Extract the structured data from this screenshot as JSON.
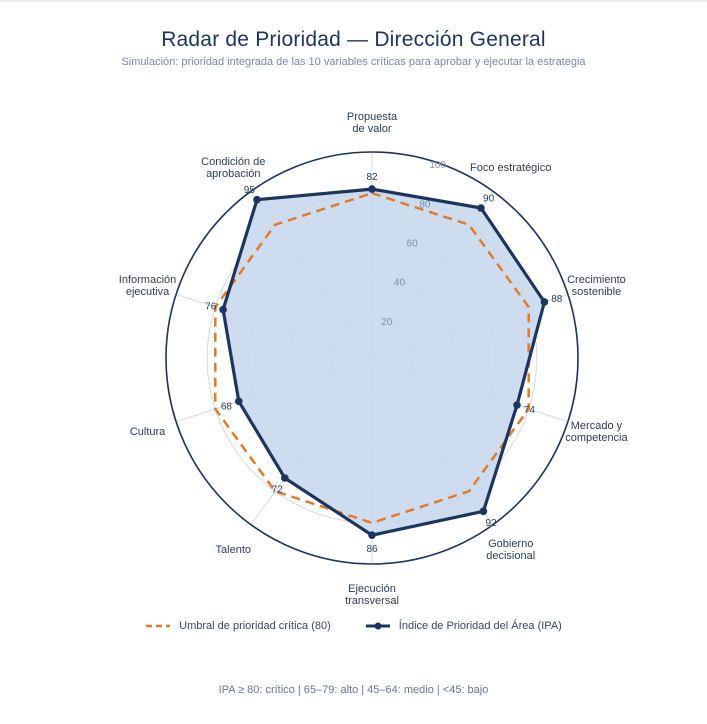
{
  "chart_data": {
    "type": "radar",
    "title": "Radar de Prioridad — Dirección General",
    "subtitle": "Simulación: prioridad integrada de las 10 variables críticas para aprobar y ejecutar la estrategia",
    "categories": [
      [
        "Propuesta",
        "de valor"
      ],
      [
        "Foco estratégico"
      ],
      [
        "Crecimiento",
        "sostenible"
      ],
      [
        "Mercado y",
        "competencia"
      ],
      [
        "Gobierno",
        "decisional"
      ],
      [
        "Ejecución",
        "transversal"
      ],
      [
        "Talento"
      ],
      [
        "Cultura"
      ],
      [
        "Información",
        "ejecutiva"
      ],
      [
        "Condición de",
        "aprobación"
      ]
    ],
    "radial_range": [
      0,
      100
    ],
    "radial_ticks": [
      "20",
      "40",
      "60",
      "80",
      "100"
    ],
    "series": [
      {
        "name": "Umbral de prioridad crítica (80)",
        "values": [
          80,
          80,
          80,
          80,
          80,
          80,
          80,
          80,
          80,
          80
        ],
        "color": "#e07b2a",
        "style": "dashed"
      },
      {
        "name": "Índice de Prioridad del Área (IPA)",
        "values": [
          82,
          90,
          88,
          74,
          92,
          86,
          72,
          68,
          76,
          95
        ],
        "data_labels": [
          "82",
          "90",
          "88",
          "74",
          "92",
          "86",
          "72",
          "68",
          "76",
          "95"
        ],
        "color": "#1c355e",
        "fill": "#c5d6ec",
        "style": "solid"
      }
    ],
    "legend_position": "bottom",
    "grid": true
  },
  "footer_note": "IPA ≥ 80: crítico | 65–79: alto | 45–64: medio | <45: bajo"
}
